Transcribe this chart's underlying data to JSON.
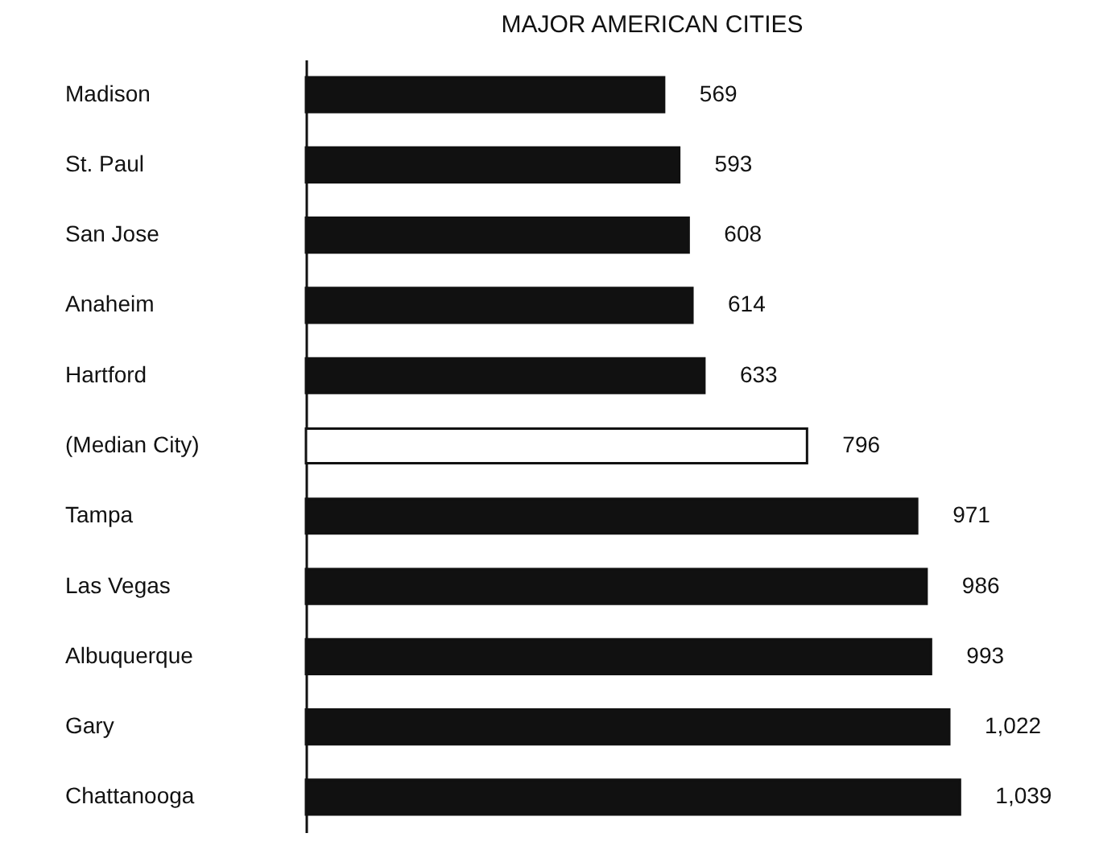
{
  "chart_data": {
    "type": "bar",
    "orientation": "horizontal",
    "title": "MAJOR AMERICAN CITIES",
    "categories": [
      "Madison",
      "St. Paul",
      "San Jose",
      "Anaheim",
      "Hartford",
      "(Median City)",
      "Tampa",
      "Las Vegas",
      "Albuquerque",
      "Gary",
      "Chattanooga"
    ],
    "values": [
      569,
      593,
      608,
      614,
      633,
      796,
      971,
      986,
      993,
      1022,
      1039
    ],
    "colors": [
      "#111111",
      "#111111",
      "#111111",
      "#111111",
      "#111111",
      "#ffffff",
      "#111111",
      "#111111",
      "#111111",
      "#111111",
      "#111111"
    ],
    "value_labels": [
      "569",
      "593",
      "608",
      "614",
      "633",
      "796",
      "971",
      "986",
      "993",
      "1,022",
      "1,039"
    ],
    "tick_labels": "y"
  }
}
